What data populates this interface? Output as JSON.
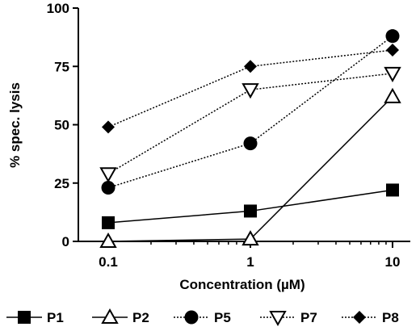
{
  "chart_data": {
    "type": "line",
    "title": "",
    "xlabel": "Concentration (µM)",
    "ylabel": "% spec. lysis",
    "x_scale": "log",
    "xlim": [
      0.1,
      10
    ],
    "ylim": [
      0,
      100
    ],
    "x_ticks": [
      "0.1",
      "1",
      "10"
    ],
    "y_ticks": [
      "0",
      "25",
      "50",
      "75",
      "100"
    ],
    "grid": false,
    "legend_position": "bottom",
    "x": [
      0.1,
      1,
      10
    ],
    "series": [
      {
        "name": "P1",
        "values": [
          8,
          13,
          22
        ],
        "marker": "square",
        "line": "solid"
      },
      {
        "name": "P2",
        "values": [
          0,
          1,
          62
        ],
        "marker": "triangle-up-open",
        "line": "solid"
      },
      {
        "name": "P5",
        "values": [
          23,
          42,
          88
        ],
        "marker": "circle",
        "line": "dotted"
      },
      {
        "name": "P7",
        "values": [
          29,
          65,
          72
        ],
        "marker": "triangle-down-open",
        "line": "dotted"
      },
      {
        "name": "P8",
        "values": [
          49,
          75,
          82
        ],
        "marker": "diamond",
        "line": "dotted"
      }
    ]
  }
}
